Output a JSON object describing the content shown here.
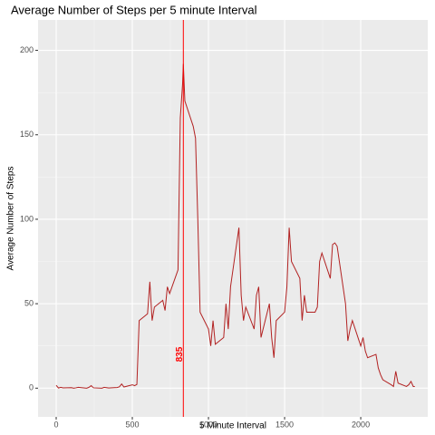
{
  "chart_data": {
    "type": "line",
    "title": "Average Number of Steps per 5 minute Interval",
    "xlabel": "5 Minute Interval",
    "ylabel": "Average Number of Steps",
    "x": [
      0,
      15,
      30,
      45,
      100,
      115,
      130,
      145,
      200,
      215,
      230,
      245,
      300,
      315,
      330,
      345,
      400,
      415,
      430,
      445,
      500,
      515,
      530,
      545,
      600,
      615,
      630,
      645,
      700,
      715,
      730,
      745,
      800,
      815,
      830,
      835,
      845,
      900,
      915,
      930,
      945,
      1000,
      1015,
      1030,
      1045,
      1100,
      1115,
      1130,
      1145,
      1200,
      1215,
      1230,
      1245,
      1300,
      1315,
      1330,
      1345,
      1400,
      1415,
      1430,
      1445,
      1500,
      1515,
      1530,
      1545,
      1600,
      1615,
      1630,
      1645,
      1700,
      1715,
      1730,
      1745,
      1800,
      1815,
      1830,
      1845,
      1900,
      1915,
      1930,
      1945,
      2000,
      2015,
      2030,
      2045,
      2100,
      2115,
      2130,
      2145,
      2200,
      2215,
      2230,
      2245,
      2300,
      2315,
      2330,
      2345,
      2355
    ],
    "series": [
      {
        "color": "#b22222",
        "values": [
          1.7,
          0.1,
          0.5,
          0.2,
          0.3,
          0,
          0.2,
          0.5,
          0,
          0.5,
          1.5,
          0.2,
          0,
          0.5,
          0.3,
          0.1,
          0.4,
          0.8,
          2.5,
          0.7,
          2,
          1.5,
          2.2,
          40,
          44,
          63,
          40,
          48,
          52,
          46,
          60,
          56,
          70,
          160,
          180,
          192,
          170,
          155,
          148,
          100,
          45,
          35,
          25,
          40,
          26,
          30,
          50,
          35,
          60,
          95,
          55,
          40,
          48,
          35,
          55,
          60,
          30,
          50,
          30,
          18,
          40,
          45,
          60,
          95,
          75,
          65,
          40,
          55,
          45,
          45,
          48,
          75,
          80,
          65,
          85,
          86,
          84,
          50,
          28,
          35,
          40,
          25,
          30,
          22,
          18,
          20,
          12,
          8,
          5,
          2,
          1,
          10,
          3,
          1,
          2,
          4,
          1,
          1
        ]
      }
    ],
    "vline": 835,
    "vline_color": "#ff0000",
    "xlim": [
      -119,
      2440
    ],
    "ylim": [
      -17,
      218
    ],
    "xticks": [
      0,
      500,
      1000,
      1500,
      2000
    ],
    "yticks": [
      0,
      50,
      100,
      150,
      200
    ],
    "grid": true
  }
}
